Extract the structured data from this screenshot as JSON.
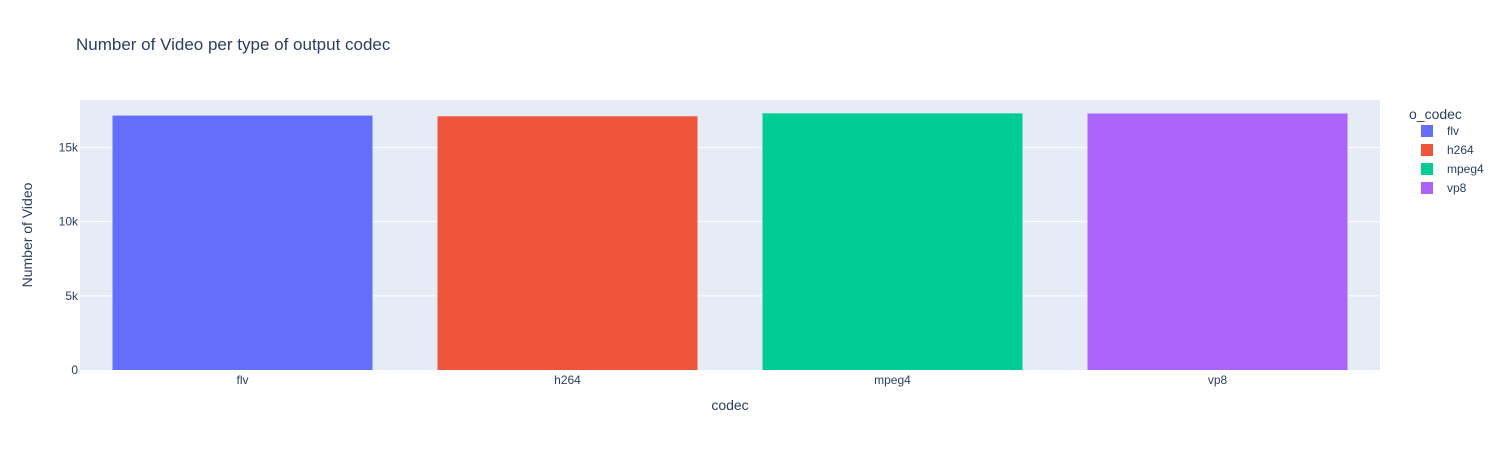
{
  "chart_data": {
    "type": "bar",
    "title": "Number of Video per type of output codec",
    "xlabel": "codec",
    "ylabel": "Number of Video",
    "categories": [
      "flv",
      "h264",
      "mpeg4",
      "vp8"
    ],
    "values": [
      17150,
      17100,
      17300,
      17290
    ],
    "colors": [
      "#636efa",
      "#ef553b",
      "#00cc96",
      "#ab63fa"
    ],
    "ylim": [
      0,
      18200
    ],
    "yticks": [
      0,
      5000,
      10000,
      15000
    ],
    "ytick_labels": [
      "0",
      "5k",
      "10k",
      "15k"
    ],
    "grid": true,
    "plot_background": "#e5ecf6",
    "legend": {
      "title": "o_codec",
      "position": "right",
      "items": [
        "flv",
        "h264",
        "mpeg4",
        "vp8"
      ]
    }
  }
}
